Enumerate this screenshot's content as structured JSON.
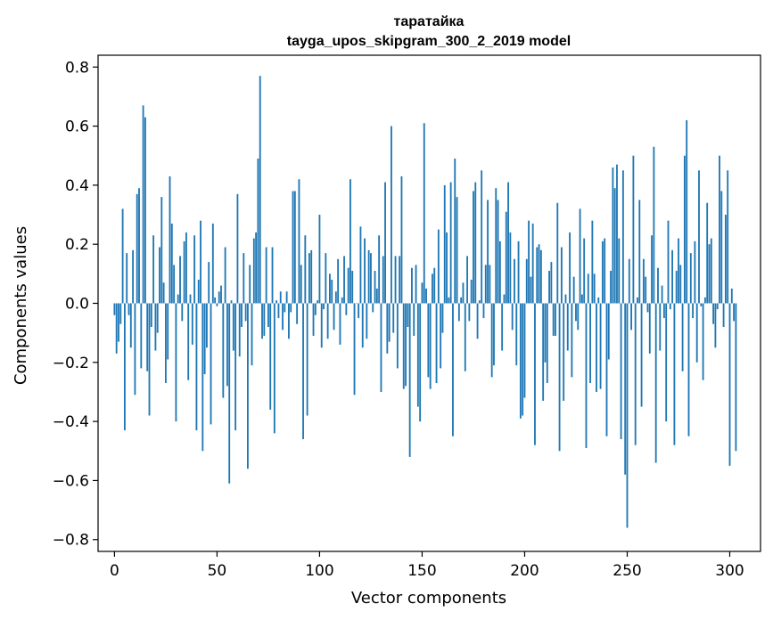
{
  "chart_data": {
    "type": "bar",
    "title": "таратайка",
    "subtitle": "tayga_upos_skipgram_300_2_2019 model",
    "xlabel": "Vector components",
    "ylabel": "Components values",
    "xlim": [
      -8,
      315
    ],
    "ylim": [
      -0.84,
      0.84
    ],
    "xticks": [
      0,
      50,
      100,
      150,
      200,
      250,
      300
    ],
    "xtick_labels": [
      "0",
      "50",
      "100",
      "150",
      "200",
      "250",
      "300"
    ],
    "yticks": [
      -0.8,
      -0.6,
      -0.4,
      -0.2,
      0.0,
      0.2,
      0.4,
      0.6,
      0.8
    ],
    "ytick_labels": [
      "−0.8",
      "−0.6",
      "−0.4",
      "−0.2",
      "0.0",
      "0.2",
      "0.4",
      "0.6",
      "0.8"
    ],
    "color": "#1f77b4",
    "values": [
      -0.04,
      -0.17,
      -0.13,
      -0.07,
      0.32,
      -0.43,
      0.17,
      -0.04,
      -0.15,
      0.18,
      -0.31,
      0.37,
      0.39,
      -0.22,
      0.67,
      0.63,
      -0.23,
      -0.38,
      -0.08,
      0.23,
      -0.16,
      -0.1,
      0.19,
      0.36,
      0.07,
      -0.27,
      -0.19,
      0.43,
      0.27,
      0.13,
      -0.4,
      0.03,
      0.16,
      -0.06,
      0.21,
      0.24,
      -0.26,
      0.03,
      -0.14,
      0.23,
      -0.43,
      0.08,
      0.28,
      -0.5,
      -0.24,
      -0.15,
      0.14,
      -0.41,
      0.27,
      0.02,
      -0.01,
      0.04,
      0.06,
      -0.32,
      0.19,
      -0.28,
      -0.61,
      0.01,
      -0.16,
      -0.43,
      0.37,
      -0.18,
      -0.08,
      0.17,
      -0.06,
      -0.56,
      0.13,
      -0.21,
      0.22,
      0.24,
      0.49,
      0.77,
      -0.12,
      -0.11,
      0.19,
      -0.08,
      -0.36,
      0.19,
      -0.44,
      0.01,
      -0.05,
      0.04,
      -0.09,
      -0.03,
      0.04,
      -0.12,
      -0.03,
      0.38,
      0.38,
      -0.07,
      0.42,
      0.13,
      -0.46,
      0.23,
      -0.38,
      0.17,
      0.18,
      -0.11,
      -0.04,
      0.01,
      0.3,
      -0.15,
      -0.02,
      0.17,
      -0.12,
      0.1,
      0.08,
      -0.09,
      0.04,
      0.15,
      -0.14,
      0.02,
      0.16,
      -0.04,
      0.12,
      0.42,
      0.11,
      -0.31,
      0.0,
      -0.05,
      0.26,
      -0.15,
      0.22,
      -0.12,
      0.18,
      0.17,
      -0.03,
      0.11,
      0.05,
      0.23,
      -0.3,
      0.16,
      0.41,
      -0.17,
      -0.13,
      0.6,
      -0.1,
      0.16,
      -0.22,
      0.16,
      0.43,
      -0.29,
      -0.28,
      -0.08,
      -0.52,
      0.12,
      -0.11,
      0.13,
      -0.35,
      -0.4,
      0.07,
      0.61,
      0.05,
      -0.25,
      -0.29,
      0.1,
      0.12,
      -0.27,
      0.25,
      -0.22,
      -0.1,
      0.4,
      0.24,
      0.02,
      0.41,
      -0.45,
      0.49,
      0.36,
      -0.06,
      0.02,
      0.07,
      -0.23,
      0.16,
      -0.06,
      0.08,
      0.38,
      0.41,
      -0.12,
      0.01,
      0.45,
      -0.05,
      0.13,
      0.35,
      0.13,
      -0.25,
      -0.21,
      0.39,
      0.35,
      0.21,
      -0.16,
      0.03,
      0.31,
      0.41,
      0.24,
      -0.09,
      0.15,
      -0.21,
      0.21,
      -0.39,
      -0.38,
      -0.32,
      0.15,
      0.28,
      0.09,
      0.27,
      -0.48,
      0.19,
      0.2,
      0.18,
      -0.33,
      -0.2,
      -0.27,
      0.11,
      0.14,
      -0.11,
      -0.11,
      0.34,
      -0.5,
      0.19,
      -0.33,
      0.03,
      -0.16,
      0.24,
      -0.25,
      0.09,
      -0.06,
      -0.09,
      0.32,
      0.03,
      0.22,
      -0.49,
      0.1,
      -0.27,
      0.28,
      0.1,
      -0.3,
      0.02,
      -0.29,
      0.21,
      0.22,
      -0.45,
      -0.19,
      0.11,
      0.46,
      0.39,
      0.47,
      0.22,
      -0.46,
      0.45,
      -0.58,
      -0.76,
      0.15,
      -0.09,
      0.5,
      -0.48,
      0.02,
      0.35,
      -0.35,
      0.15,
      0.09,
      -0.03,
      -0.17,
      0.23,
      0.53,
      -0.54,
      0.12,
      -0.16,
      0.06,
      -0.05,
      -0.4,
      0.28,
      -0.02,
      0.18,
      -0.48,
      0.11,
      0.22,
      0.13,
      -0.23,
      0.5,
      0.62,
      -0.45,
      0.17,
      -0.05,
      0.21,
      -0.2,
      0.45,
      -0.01,
      -0.26,
      0.02,
      0.34,
      0.2,
      0.22,
      -0.07,
      -0.15,
      -0.02,
      0.5,
      0.38,
      -0.08,
      0.3,
      0.45,
      -0.55,
      0.05,
      -0.06,
      -0.5
    ]
  }
}
